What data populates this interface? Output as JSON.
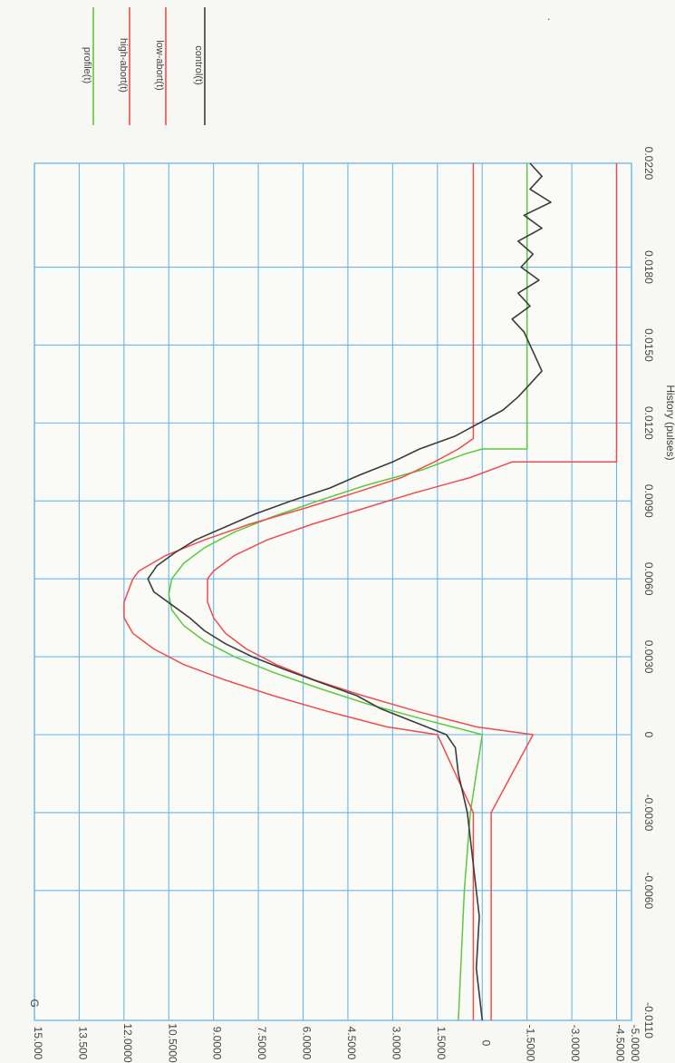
{
  "chart_data": {
    "type": "line",
    "orientation": "rotated-90-clockwise",
    "xlabel": "History (pulses)",
    "ylabel": "G",
    "xlim": [
      -0.011,
      0.022
    ],
    "ylim": [
      -5.0,
      15.0
    ],
    "x_ticks": [
      "-0.0110",
      "-0.0060",
      "-0.0030",
      "0",
      "0.0030",
      "0.0060",
      "0.0090",
      "0.0120",
      "0.0150",
      "0.0180",
      "0.0220"
    ],
    "x_tick_values": [
      -0.011,
      -0.006,
      -0.003,
      0,
      0.003,
      0.006,
      0.009,
      0.012,
      0.015,
      0.018,
      0.022
    ],
    "y_ticks": [
      "-5.0000",
      "-4.5000",
      "-3.0000",
      "-1.5000",
      "0",
      "1.5000",
      "3.0000",
      "4.5000",
      "6.0000",
      "7.5000",
      "9.0000",
      "10.5000",
      "12.0000",
      "13.500",
      "15.000"
    ],
    "y_tick_values": [
      -5.0,
      -4.5,
      -3.0,
      -1.5,
      0,
      1.5,
      3.0,
      4.5,
      6.0,
      7.5,
      9.0,
      10.5,
      12.0,
      13.5,
      15.0
    ],
    "grid": true,
    "legend_position": "right",
    "series": [
      {
        "name": "profile(t)",
        "color": "#5cc83c",
        "x": [
          -0.011,
          -0.006,
          -0.003,
          -0.0015,
          0,
          0.0006,
          0.0012,
          0.0018,
          0.0024,
          0.003,
          0.0036,
          0.0042,
          0.0048,
          0.0054,
          0.006,
          0.0066,
          0.0072,
          0.0078,
          0.0084,
          0.009,
          0.0096,
          0.0102,
          0.0108,
          0.011,
          0.011,
          0.015,
          0.022
        ],
        "y": [
          0.8,
          0.6,
          0.4,
          0.2,
          0,
          2.0,
          3.9,
          5.5,
          7.0,
          8.3,
          9.3,
          10.0,
          10.4,
          10.5,
          10.4,
          10.0,
          9.3,
          8.3,
          7.0,
          5.5,
          3.9,
          2.0,
          0.6,
          0,
          -1.5,
          -1.5,
          -1.5
        ]
      },
      {
        "name": "high-abort(t)",
        "color": "#ee4d4d",
        "x": [
          -0.011,
          -0.003,
          -0.003,
          0,
          0.0003,
          0.0009,
          0.0015,
          0.0021,
          0.0027,
          0.0033,
          0.0039,
          0.0045,
          0.0051,
          0.0057,
          0.006,
          0.0063,
          0.0069,
          0.0075,
          0.0081,
          0.0087,
          0.0093,
          0.0099,
          0.0105,
          0.011,
          0.0114,
          0.0114,
          0.022
        ],
        "y": [
          0.3,
          0.3,
          0.3,
          1.5,
          3.2,
          5.2,
          7.0,
          8.6,
          10.0,
          11.0,
          11.7,
          12.0,
          12.0,
          11.8,
          11.7,
          11.5,
          10.6,
          9.3,
          7.8,
          6.0,
          4.3,
          2.7,
          1.6,
          0.8,
          0.3,
          0.3,
          0.3
        ]
      },
      {
        "name": "low-abort(t)",
        "color": "#ee4d4d",
        "x": [
          -0.011,
          -0.003,
          -0.003,
          0,
          0.0003,
          0.0009,
          0.0015,
          0.0021,
          0.0027,
          0.0033,
          0.0039,
          0.0045,
          0.0051,
          0.0057,
          0.006,
          0.0063,
          0.0069,
          0.0075,
          0.0081,
          0.0087,
          0.0093,
          0.0099,
          0.0105,
          0.0105,
          0.022
        ],
        "y": [
          -0.3,
          -0.3,
          -0.3,
          -1.7,
          0.2,
          2.2,
          4.0,
          5.6,
          6.9,
          7.9,
          8.6,
          9.0,
          9.2,
          9.2,
          9.2,
          9.0,
          8.3,
          7.2,
          5.7,
          4.0,
          2.3,
          0.4,
          -1.0,
          -4.5,
          -4.5
        ]
      },
      {
        "name": "control(t)",
        "color": "#3c3c3c",
        "x": [
          -0.011,
          -0.009,
          -0.007,
          -0.005,
          -0.003,
          -0.0015,
          -0.0005,
          0,
          0.0005,
          0.001,
          0.0015,
          0.002,
          0.0025,
          0.003,
          0.0035,
          0.004,
          0.0045,
          0.005,
          0.0055,
          0.006,
          0.0065,
          0.007,
          0.0075,
          0.008,
          0.0085,
          0.009,
          0.0095,
          0.01,
          0.0105,
          0.011,
          0.0115,
          0.012,
          0.0125,
          0.013,
          0.0135,
          0.014,
          0.0145,
          0.015,
          0.0155,
          0.016,
          0.0165,
          0.017,
          0.0175,
          0.018,
          0.0185,
          0.019,
          0.0195,
          0.02,
          0.0205,
          0.021,
          0.0215,
          0.022
        ],
        "y": [
          0.0,
          0.2,
          0.1,
          0.3,
          0.5,
          0.8,
          0.9,
          1.2,
          2.3,
          3.4,
          4.2,
          5.4,
          6.6,
          7.7,
          8.6,
          9.3,
          9.8,
          10.4,
          11.0,
          11.2,
          10.9,
          10.3,
          9.6,
          8.6,
          7.6,
          6.4,
          5.1,
          4.1,
          3.0,
          2.1,
          0.9,
          0.1,
          -0.7,
          -1.2,
          -1.6,
          -2.0,
          -1.8,
          -1.6,
          -1.4,
          -1.0,
          -1.6,
          -1.2,
          -1.9,
          -1.3,
          -1.7,
          -1.2,
          -2.0,
          -1.4,
          -2.3,
          -1.6,
          -2.0,
          -1.6
        ]
      }
    ]
  },
  "side_mark": "."
}
